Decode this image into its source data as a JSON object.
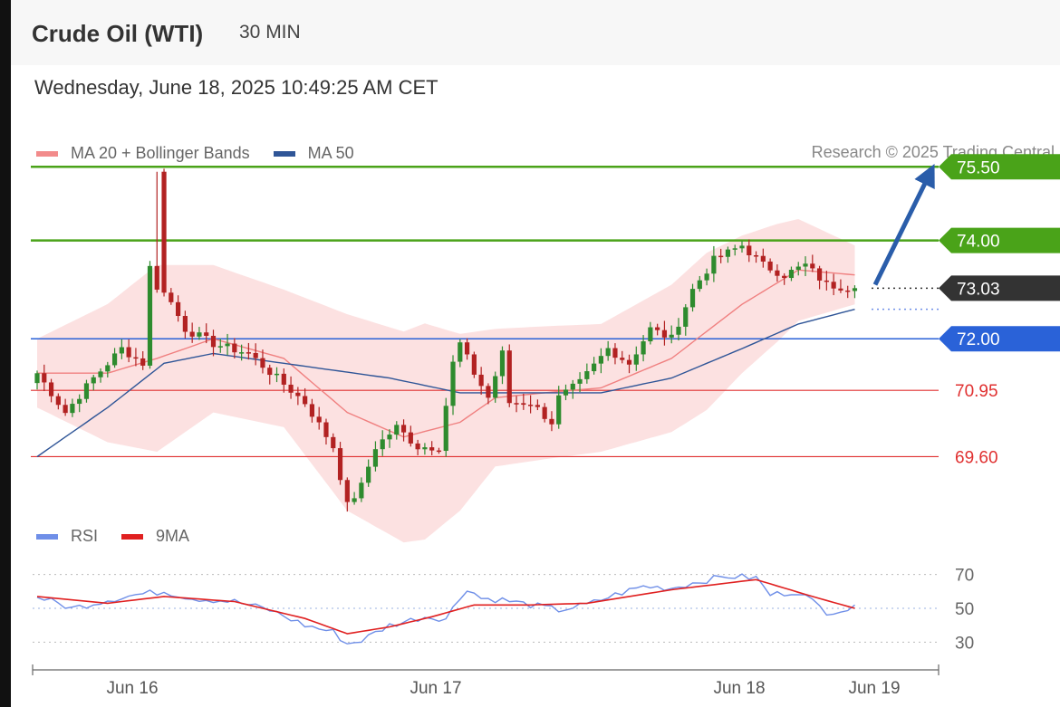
{
  "header": {
    "title": "Crude Oil (WTI)",
    "interval": "30 MIN",
    "timestamp": "Wednesday, June 18, 2025 10:49:25 AM CET"
  },
  "legend": {
    "price": [
      {
        "label": "MA 20 + Bollinger Bands",
        "color": "#f28b8b"
      },
      {
        "label": "MA 50",
        "color": "#2f5597"
      }
    ],
    "rsi": [
      {
        "label": "RSI",
        "color": "#6f8fe8"
      },
      {
        "label": "9MA",
        "color": "#e02020"
      }
    ],
    "credit": "Research © 2025 Trading Central"
  },
  "chart_data": {
    "type": "candlestick",
    "x_ticks": [
      "Jun 16",
      "Jun 17",
      "Jun 18",
      "Jun 19"
    ],
    "y_range": [
      68.3,
      75.8
    ],
    "levels": [
      {
        "value": 75.5,
        "label": "75.50",
        "style": "resistance",
        "color": "#4aa319"
      },
      {
        "value": 74.0,
        "label": "74.00",
        "style": "resistance",
        "color": "#4aa319"
      },
      {
        "value": 73.03,
        "label": "73.03",
        "style": "last-price",
        "color": "#333333"
      },
      {
        "value": 72.0,
        "label": "72.00",
        "style": "pivot",
        "color": "#2a62d8"
      },
      {
        "value": 70.95,
        "label": "70.95",
        "style": "support",
        "color": "#e03030"
      },
      {
        "value": 69.6,
        "label": "69.60",
        "style": "support",
        "color": "#e03030"
      }
    ],
    "price_anchors": [
      [
        0,
        71.3
      ],
      [
        4,
        70.5
      ],
      [
        8,
        71.2
      ],
      [
        12,
        71.8
      ],
      [
        15,
        71.5
      ],
      [
        17,
        75.4
      ],
      [
        18,
        73.0
      ],
      [
        21,
        72.2
      ],
      [
        25,
        71.9
      ],
      [
        30,
        71.7
      ],
      [
        34,
        71.2
      ],
      [
        38,
        70.7
      ],
      [
        42,
        69.8
      ],
      [
        44,
        68.6
      ],
      [
        46,
        69.0
      ],
      [
        48,
        69.8
      ],
      [
        51,
        70.2
      ],
      [
        54,
        69.8
      ],
      [
        57,
        69.8
      ],
      [
        59,
        71.5
      ],
      [
        60,
        71.9
      ],
      [
        62,
        71.3
      ],
      [
        64,
        70.8
      ],
      [
        66,
        71.7
      ],
      [
        67,
        70.7
      ],
      [
        70,
        70.7
      ],
      [
        73,
        70.3
      ],
      [
        74,
        70.8
      ],
      [
        77,
        71.1
      ],
      [
        81,
        71.8
      ],
      [
        84,
        71.5
      ],
      [
        87,
        72.2
      ],
      [
        90,
        72.0
      ],
      [
        93,
        73.0
      ],
      [
        96,
        73.6
      ],
      [
        100,
        73.9
      ],
      [
        103,
        73.5
      ],
      [
        106,
        73.3
      ],
      [
        109,
        73.5
      ],
      [
        112,
        73.1
      ],
      [
        116,
        73.03
      ]
    ],
    "ma20_anchors": [
      [
        0,
        71.3
      ],
      [
        10,
        71.3
      ],
      [
        17,
        71.6
      ],
      [
        25,
        72.0
      ],
      [
        35,
        71.6
      ],
      [
        44,
        70.5
      ],
      [
        52,
        70.0
      ],
      [
        60,
        70.3
      ],
      [
        65,
        70.8
      ],
      [
        72,
        70.9
      ],
      [
        80,
        71.0
      ],
      [
        90,
        71.6
      ],
      [
        100,
        72.7
      ],
      [
        108,
        73.4
      ],
      [
        116,
        73.3
      ]
    ],
    "ma50_anchors": [
      [
        0,
        69.6
      ],
      [
        10,
        70.6
      ],
      [
        18,
        71.5
      ],
      [
        25,
        71.7
      ],
      [
        35,
        71.5
      ],
      [
        50,
        71.2
      ],
      [
        60,
        70.9
      ],
      [
        70,
        70.9
      ],
      [
        80,
        70.9
      ],
      [
        90,
        71.2
      ],
      [
        100,
        71.8
      ],
      [
        108,
        72.3
      ],
      [
        116,
        72.6
      ]
    ],
    "bollinger_width_anchors": [
      [
        0,
        0.7
      ],
      [
        17,
        1.9
      ],
      [
        25,
        1.5
      ],
      [
        35,
        1.4
      ],
      [
        44,
        2.0
      ],
      [
        55,
        2.2
      ],
      [
        65,
        1.4
      ],
      [
        80,
        1.3
      ],
      [
        95,
        1.6
      ],
      [
        105,
        1.2
      ],
      [
        116,
        0.6
      ]
    ],
    "forecast_arrow": {
      "from_value": 73.1,
      "to_value": 75.5
    },
    "rsi": {
      "y_ticks": [
        70,
        50,
        30
      ],
      "y_range": [
        20,
        80
      ],
      "rsi_anchors": [
        [
          0,
          57
        ],
        [
          5,
          50
        ],
        [
          10,
          55
        ],
        [
          14,
          58
        ],
        [
          18,
          60
        ],
        [
          22,
          56
        ],
        [
          28,
          54
        ],
        [
          33,
          49
        ],
        [
          38,
          40
        ],
        [
          42,
          36
        ],
        [
          44,
          29
        ],
        [
          46,
          31
        ],
        [
          50,
          40
        ],
        [
          55,
          45
        ],
        [
          58,
          44
        ],
        [
          61,
          62
        ],
        [
          63,
          56
        ],
        [
          66,
          55
        ],
        [
          70,
          52
        ],
        [
          74,
          49
        ],
        [
          78,
          52
        ],
        [
          82,
          58
        ],
        [
          86,
          63
        ],
        [
          90,
          62
        ],
        [
          94,
          66
        ],
        [
          98,
          69
        ],
        [
          102,
          68
        ],
        [
          104,
          58
        ],
        [
          108,
          60
        ],
        [
          112,
          48
        ],
        [
          116,
          50
        ]
      ],
      "ma_anchors": [
        [
          0,
          57
        ],
        [
          10,
          53
        ],
        [
          18,
          57
        ],
        [
          28,
          54
        ],
        [
          38,
          44
        ],
        [
          44,
          35
        ],
        [
          50,
          39
        ],
        [
          56,
          45
        ],
        [
          62,
          52
        ],
        [
          70,
          52
        ],
        [
          78,
          53
        ],
        [
          90,
          61
        ],
        [
          102,
          67
        ],
        [
          110,
          57
        ],
        [
          116,
          50
        ]
      ]
    }
  }
}
